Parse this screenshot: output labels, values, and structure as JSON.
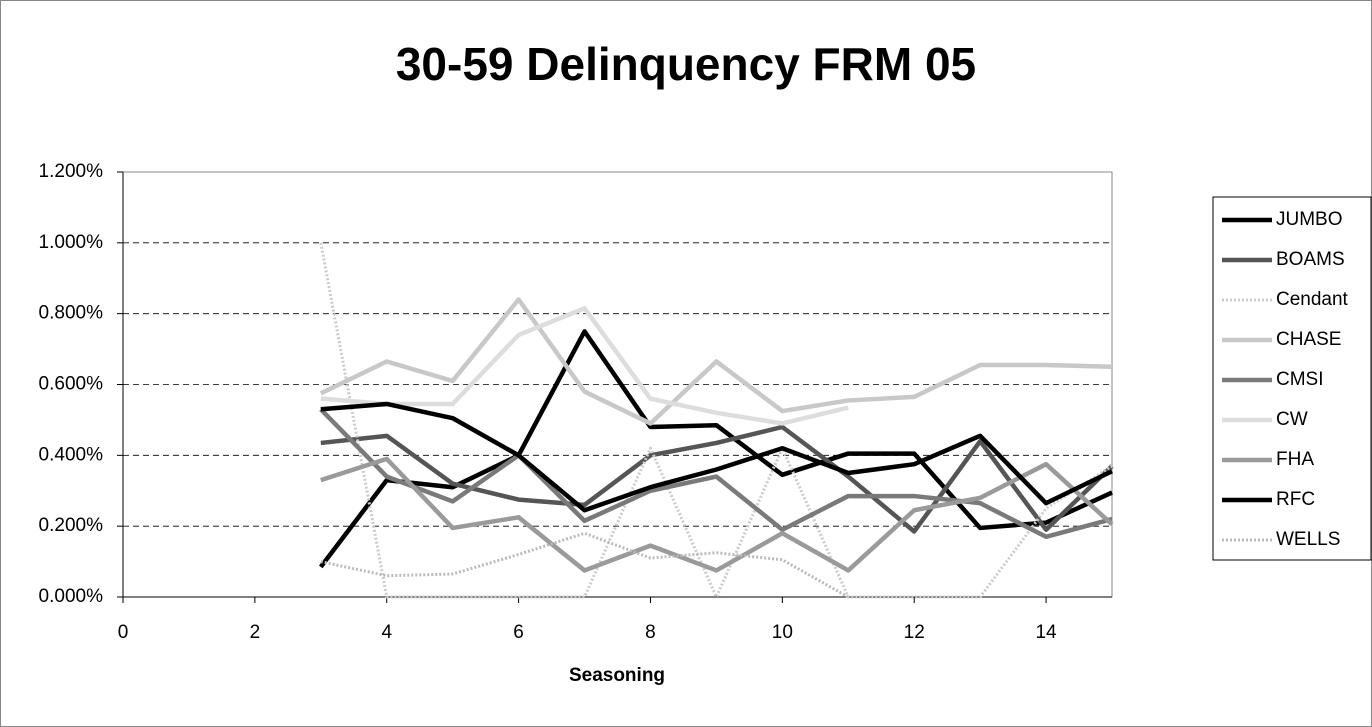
{
  "chart_data": {
    "type": "line",
    "title": "30-59 Delinquency FRM 05",
    "x_label": "Seasoning",
    "x": [
      3,
      4,
      5,
      6,
      7,
      8,
      9,
      10,
      11,
      12,
      13,
      14,
      15
    ],
    "xlim": [
      0,
      15
    ],
    "xticks": [
      0,
      2,
      4,
      6,
      8,
      10,
      12,
      14
    ],
    "ylim": [
      0,
      1.2
    ],
    "yticks": [
      {
        "value": 0,
        "label": "0.000%"
      },
      {
        "value": 0.2,
        "label": "0.200%"
      },
      {
        "value": 0.4,
        "label": "0.400%"
      },
      {
        "value": 0.6,
        "label": "0.600%"
      },
      {
        "value": 0.8,
        "label": "0.800%"
      },
      {
        "value": 1.0,
        "label": "1.000%"
      },
      {
        "value": 1.2,
        "label": "1.200%"
      }
    ],
    "grid": true,
    "legend": "right",
    "series": [
      {
        "name": "JUMBO",
        "color": "#000000",
        "values": [
          0.085,
          0.33,
          0.31,
          0.4,
          0.75,
          0.48,
          0.485,
          0.345,
          0.405,
          0.405,
          0.195,
          0.21,
          0.295
        ]
      },
      {
        "name": "BOAMS",
        "color": "#555555",
        "values": [
          0.435,
          0.455,
          0.32,
          0.275,
          0.26,
          0.4,
          0.435,
          0.48,
          0.34,
          0.185,
          0.44,
          0.19,
          0.37
        ]
      },
      {
        "name": "Cendant",
        "color": "#cccccc",
        "dotted": true,
        "values": [
          1.0,
          0.0,
          0.0,
          0.0,
          0.0,
          0.42,
          0.0,
          0.42,
          0.0,
          0.0,
          0.0,
          0.25,
          0.37
        ]
      },
      {
        "name": "CHASE",
        "color": "#c8c8c8",
        "values": [
          0.575,
          0.665,
          0.61,
          0.84,
          0.58,
          0.49,
          0.665,
          0.525,
          0.555,
          0.565,
          0.655,
          0.655,
          0.65
        ]
      },
      {
        "name": "CMSI",
        "color": "#7a7a7a",
        "values": [
          0.53,
          0.34,
          0.27,
          0.4,
          0.215,
          0.3,
          0.34,
          0.19,
          0.285,
          0.285,
          0.265,
          0.17,
          0.22
        ]
      },
      {
        "name": "CW",
        "color": "#dddddd",
        "values": [
          0.56,
          0.545,
          0.545,
          0.74,
          0.815,
          0.56,
          0.52,
          0.49,
          0.535,
          null,
          null,
          null,
          null
        ]
      },
      {
        "name": "FHA",
        "color": "#9a9a9a",
        "values": [
          0.33,
          0.39,
          0.195,
          0.225,
          0.075,
          0.145,
          0.075,
          0.18,
          0.075,
          0.245,
          0.28,
          0.375,
          0.205
        ]
      },
      {
        "name": "RFC",
        "color": "#000000",
        "values": [
          0.53,
          0.545,
          0.505,
          0.4,
          0.245,
          0.31,
          0.36,
          0.42,
          0.35,
          0.375,
          0.455,
          0.265,
          0.355
        ]
      },
      {
        "name": "WELLS",
        "color": "#bbbbbb",
        "dotted": true,
        "values": [
          0.1,
          0.06,
          0.065,
          0.12,
          0.18,
          0.11,
          0.125,
          0.105,
          0.0,
          null,
          null,
          null,
          null
        ]
      }
    ]
  }
}
